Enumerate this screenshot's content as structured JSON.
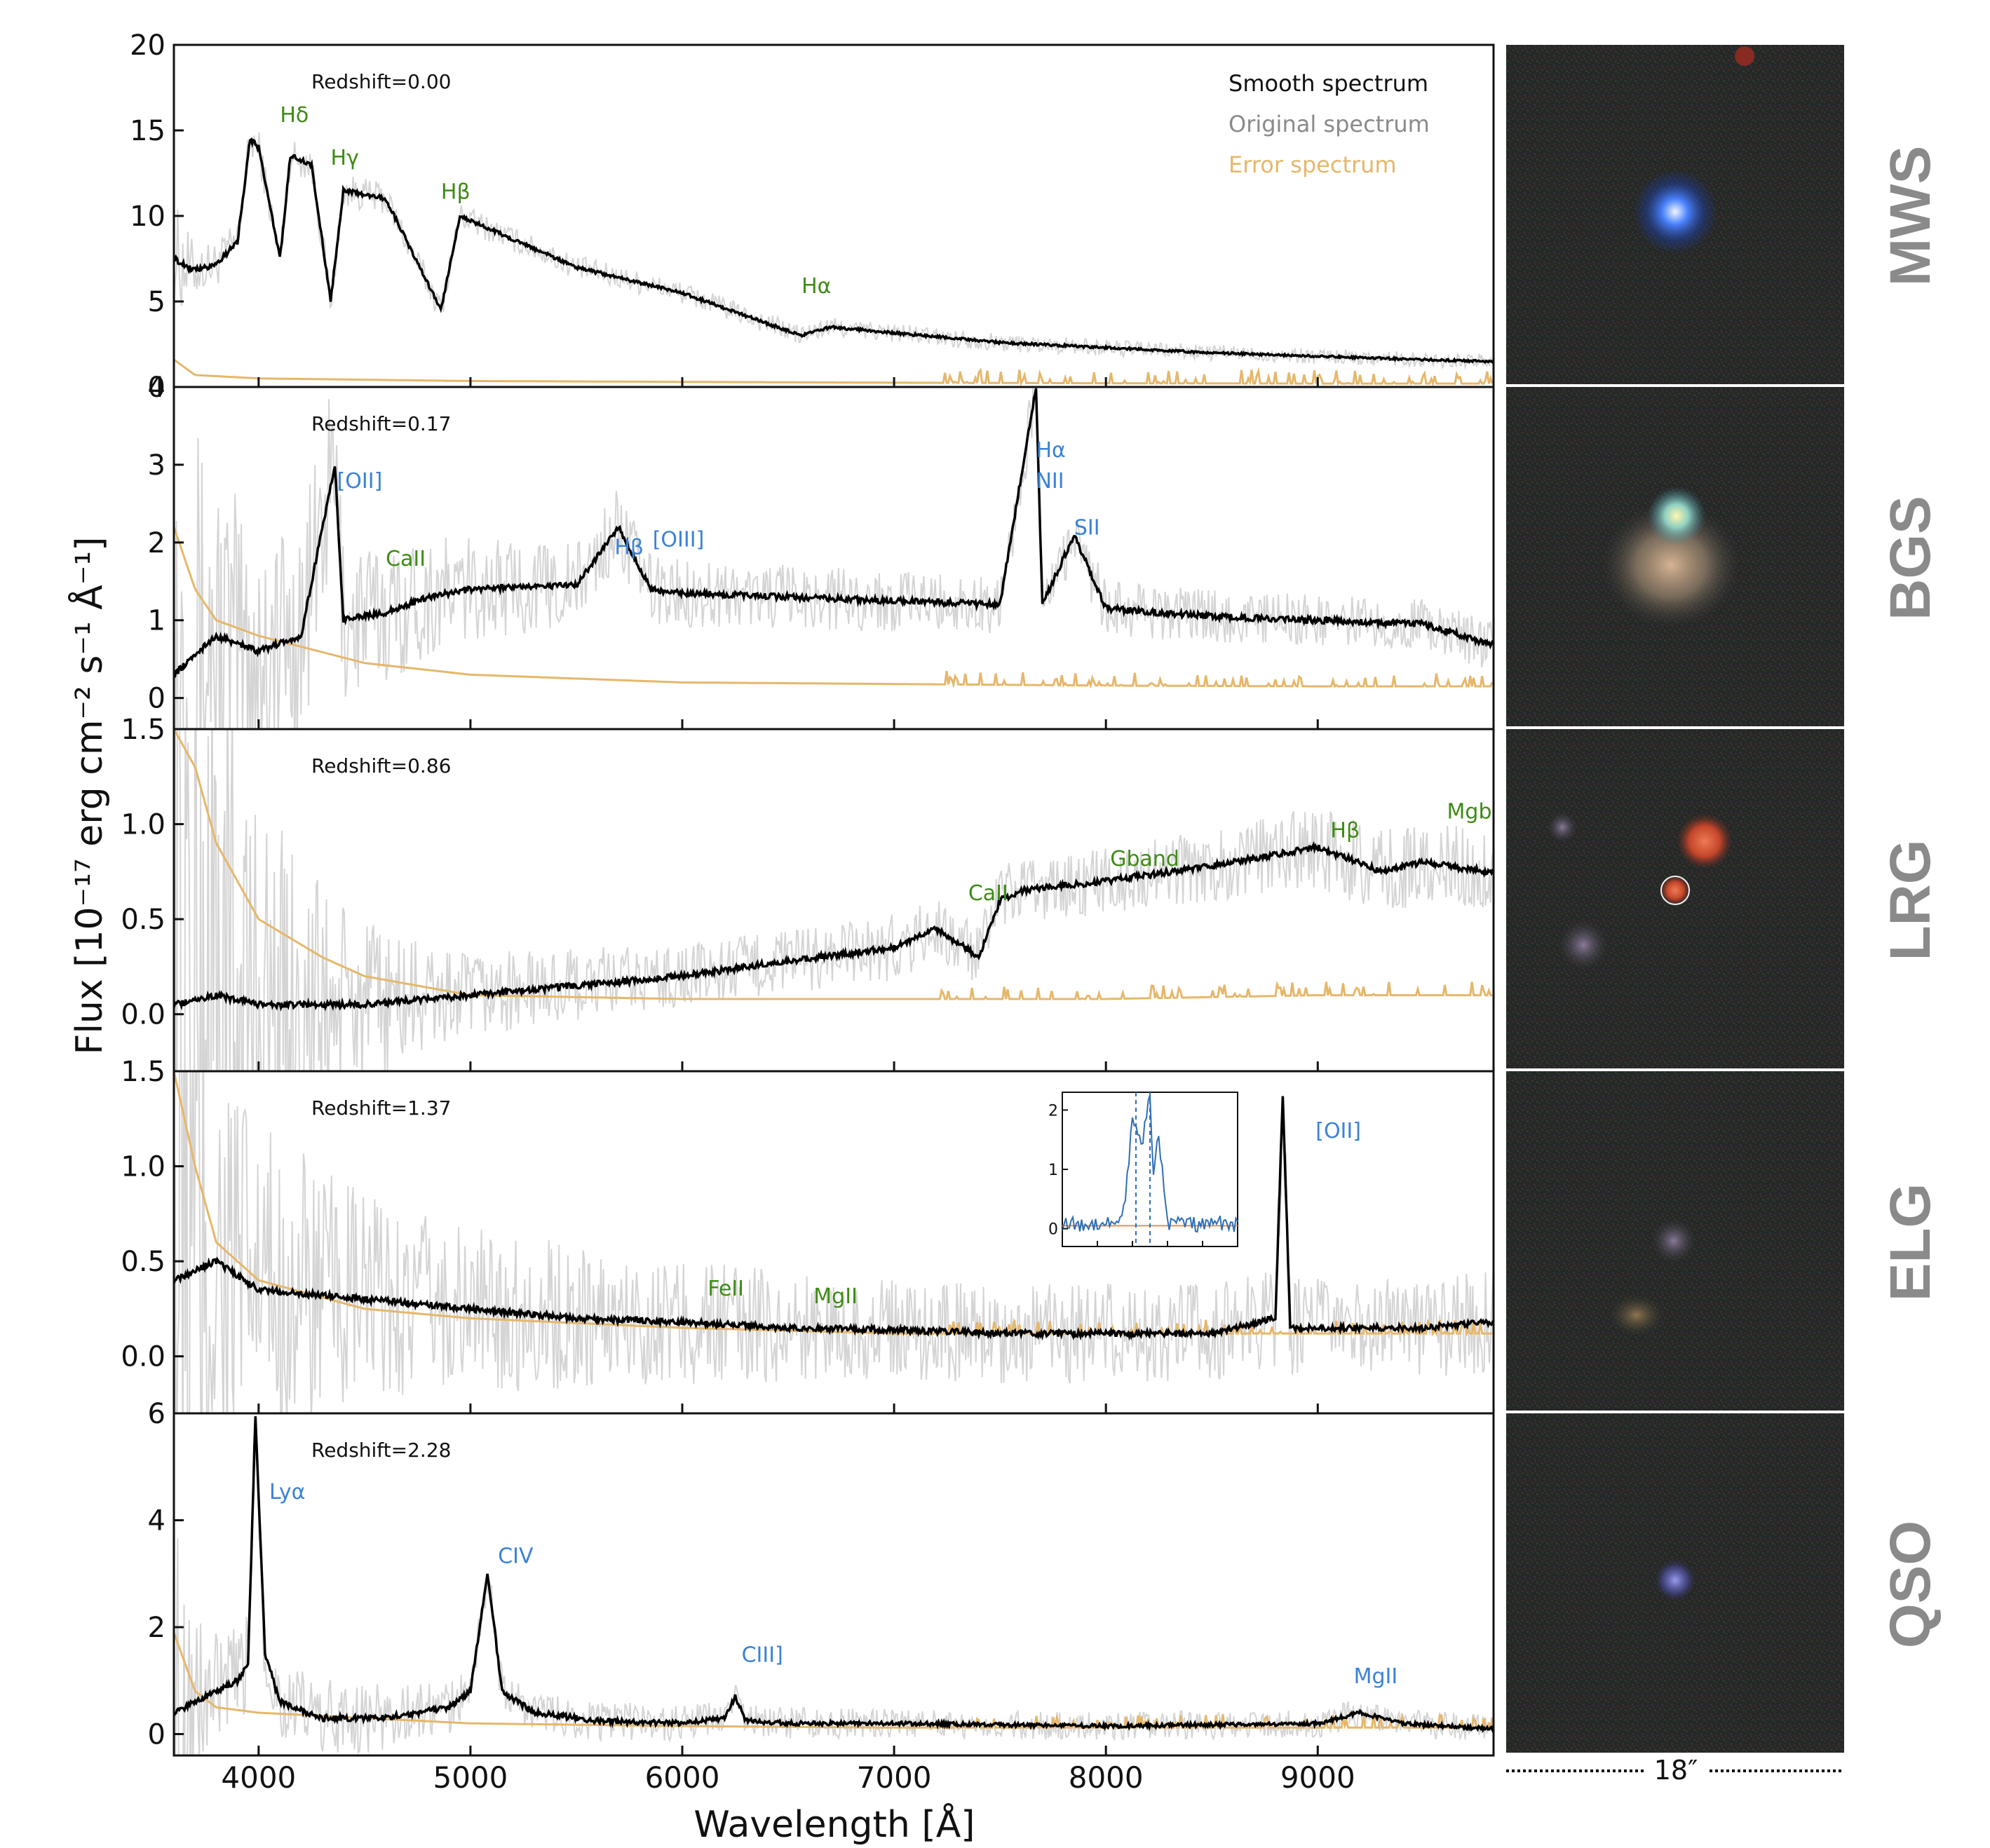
{
  "colors": {
    "smooth": "#000000",
    "original": "#cfcfcf",
    "error": "#e6b76a",
    "line_label_blue": "#3b82d6",
    "line_label_green": "#3f8b16",
    "inset_line": "#2f6fb5",
    "class_label": "#8a8a8a"
  },
  "legend": {
    "placement": "top-right",
    "smooth": "Smooth spectrum",
    "original": "Original spectrum",
    "error": "Error spectrum"
  },
  "axes": {
    "ylabel": "Flux [10⁻¹⁷ erg cm⁻² s⁻¹ Å⁻¹]",
    "xlabel": "Wavelength [Å]",
    "xlim": [
      3600,
      9830
    ],
    "xticks": [
      4000,
      5000,
      6000,
      7000,
      8000,
      9000
    ],
    "xtick_labels": [
      "4000",
      "5000",
      "6000",
      "7000",
      "8000",
      "9000"
    ]
  },
  "scale_bar": {
    "label": "18″"
  },
  "chart_data": [
    {
      "type": "line",
      "target_class": "MWS",
      "redshift_label": "Redshift=0.00",
      "ylim": [
        0,
        20
      ],
      "yticks": [
        0,
        5,
        10,
        15,
        20
      ],
      "ytick_labels": [
        "0",
        "5",
        "10",
        "15",
        "20"
      ],
      "series": [
        {
          "name": "Smooth spectrum",
          "x": [
            3600,
            3700,
            3800,
            3900,
            3960,
            4000,
            4101,
            4150,
            4250,
            4340,
            4400,
            4600,
            4861,
            4950,
            5500,
            6000,
            6563,
            6700,
            7500,
            8000,
            8500,
            9000,
            9500,
            9800
          ],
          "values": [
            7.5,
            6.8,
            7.2,
            8.5,
            14.5,
            14.0,
            7.5,
            13.5,
            13.0,
            5.0,
            11.5,
            11.0,
            4.5,
            10.0,
            7.0,
            5.5,
            3.0,
            3.5,
            2.6,
            2.3,
            2.0,
            1.8,
            1.6,
            1.5
          ]
        },
        {
          "name": "Error spectrum",
          "x": [
            3600,
            3700,
            4000,
            5000,
            6000,
            7000,
            8000,
            9000,
            9800
          ],
          "values": [
            1.6,
            0.7,
            0.5,
            0.35,
            0.3,
            0.25,
            0.22,
            0.2,
            0.2
          ]
        }
      ],
      "annotations": [
        {
          "text": "Hδ",
          "x": 4101,
          "y": 15.5,
          "color": "green"
        },
        {
          "text": "Hγ",
          "x": 4340,
          "y": 13.0,
          "color": "green"
        },
        {
          "text": "Hβ",
          "x": 4861,
          "y": 11.0,
          "color": "green"
        },
        {
          "text": "Hα",
          "x": 6563,
          "y": 5.5,
          "color": "green"
        }
      ],
      "showLegend": true
    },
    {
      "type": "line",
      "target_class": "BGS",
      "redshift_label": "Redshift=0.17",
      "ylim": [
        -0.4,
        4
      ],
      "yticks": [
        0,
        1,
        2,
        3,
        4
      ],
      "ytick_labels": [
        "0",
        "1",
        "2",
        "3",
        "4"
      ],
      "series": [
        {
          "name": "Smooth spectrum",
          "x": [
            3600,
            3800,
            4000,
            4200,
            4360,
            4400,
            4600,
            4800,
            5000,
            5500,
            5700,
            5850,
            6000,
            6500,
            7000,
            7500,
            7670,
            7700,
            7850,
            8000,
            8500,
            9000,
            9500,
            9800
          ],
          "values": [
            0.3,
            0.8,
            0.6,
            0.8,
            3.0,
            1.0,
            1.1,
            1.3,
            1.4,
            1.45,
            2.2,
            1.4,
            1.35,
            1.3,
            1.25,
            1.2,
            4.0,
            1.2,
            2.1,
            1.15,
            1.05,
            1.0,
            0.95,
            0.7
          ]
        },
        {
          "name": "Error spectrum",
          "x": [
            3600,
            3700,
            3800,
            4000,
            4500,
            5000,
            6000,
            7000,
            8000,
            9000,
            9800
          ],
          "values": [
            2.2,
            1.4,
            1.0,
            0.8,
            0.45,
            0.3,
            0.2,
            0.18,
            0.16,
            0.15,
            0.15
          ]
        }
      ],
      "annotations": [
        {
          "text": "[OII]",
          "x": 4370,
          "y": 2.7,
          "color": "blue"
        },
        {
          "text": "CaII",
          "x": 4600,
          "y": 1.7,
          "color": "green"
        },
        {
          "text": "Hβ",
          "x": 5680,
          "y": 1.85,
          "color": "blue"
        },
        {
          "text": "[OIII]",
          "x": 5860,
          "y": 1.95,
          "color": "blue"
        },
        {
          "text": "Hα",
          "x": 7670,
          "y": 3.1,
          "color": "blue"
        },
        {
          "text": "NII",
          "x": 7670,
          "y": 2.7,
          "color": "blue"
        },
        {
          "text": "SII",
          "x": 7850,
          "y": 2.1,
          "color": "blue"
        }
      ],
      "showLegend": false
    },
    {
      "type": "line",
      "target_class": "LRG",
      "redshift_label": "Redshift=0.86",
      "ylim": [
        -0.3,
        1.5
      ],
      "yticks": [
        0.0,
        0.5,
        1.0,
        1.5
      ],
      "ytick_labels": [
        "0.0",
        "0.5",
        "1.0",
        "1.5"
      ],
      "series": [
        {
          "name": "Smooth spectrum",
          "x": [
            3600,
            3800,
            4000,
            4500,
            5000,
            5500,
            6000,
            6500,
            7000,
            7200,
            7400,
            7500,
            7600,
            8000,
            8500,
            9000,
            9300,
            9500,
            9800
          ],
          "values": [
            0.05,
            0.1,
            0.05,
            0.05,
            0.1,
            0.15,
            0.2,
            0.28,
            0.35,
            0.45,
            0.3,
            0.6,
            0.65,
            0.7,
            0.78,
            0.88,
            0.75,
            0.8,
            0.75
          ]
        },
        {
          "name": "Error spectrum",
          "x": [
            3600,
            3700,
            3800,
            4000,
            4300,
            4500,
            5000,
            6000,
            7000,
            8000,
            9000,
            9800
          ],
          "values": [
            1.5,
            1.3,
            0.9,
            0.5,
            0.3,
            0.2,
            0.1,
            0.08,
            0.08,
            0.08,
            0.1,
            0.1
          ]
        }
      ],
      "annotations": [
        {
          "text": "CaII",
          "x": 7350,
          "y": 0.6,
          "color": "green"
        },
        {
          "text": "Gband",
          "x": 8020,
          "y": 0.78,
          "color": "green"
        },
        {
          "text": "Hβ",
          "x": 9060,
          "y": 0.93,
          "color": "green"
        },
        {
          "text": "Mgb",
          "x": 9610,
          "y": 1.03,
          "color": "green"
        }
      ],
      "showLegend": false
    },
    {
      "type": "line",
      "target_class": "ELG",
      "redshift_label": "Redshift=1.37",
      "ylim": [
        -0.3,
        1.5
      ],
      "yticks": [
        0.0,
        0.5,
        1.0,
        1.5
      ],
      "ytick_labels": [
        "0.0",
        "0.5",
        "1.0",
        "1.5"
      ],
      "series": [
        {
          "name": "Smooth spectrum",
          "x": [
            3600,
            3800,
            4000,
            4500,
            5000,
            5500,
            6000,
            6500,
            7000,
            7500,
            8000,
            8500,
            8800,
            8835,
            8870,
            9000,
            9500,
            9800
          ],
          "values": [
            0.4,
            0.5,
            0.35,
            0.3,
            0.25,
            0.2,
            0.18,
            0.15,
            0.14,
            0.12,
            0.12,
            0.12,
            0.2,
            1.38,
            0.15,
            0.15,
            0.15,
            0.18
          ]
        },
        {
          "name": "Error spectrum",
          "x": [
            3600,
            3700,
            3800,
            4000,
            4500,
            5000,
            6000,
            7000,
            8000,
            9000,
            9800
          ],
          "values": [
            1.5,
            1.0,
            0.6,
            0.4,
            0.25,
            0.2,
            0.15,
            0.12,
            0.12,
            0.12,
            0.12
          ]
        }
      ],
      "annotations": [
        {
          "text": "FeII",
          "x": 6120,
          "y": 0.32,
          "color": "green"
        },
        {
          "text": "MgII",
          "x": 6620,
          "y": 0.28,
          "color": "green"
        },
        {
          "text": "[OII]",
          "x": 8990,
          "y": 1.15,
          "color": "blue"
        }
      ],
      "inset": {
        "type": "line",
        "ylim": [
          -0.3,
          2.3
        ],
        "yticks": [
          0,
          1,
          2
        ],
        "ytick_labels": [
          "0",
          "1",
          "2"
        ],
        "x": [
          0,
          0.1,
          0.2,
          0.3,
          0.35,
          0.4,
          0.45,
          0.5,
          0.52,
          0.55,
          0.6,
          0.7,
          0.8,
          0.9,
          1.0
        ],
        "values": [
          0.1,
          0.05,
          0.1,
          0.1,
          0.3,
          1.8,
          1.4,
          2.2,
          0.9,
          1.6,
          0.1,
          0.1,
          0.05,
          0.1,
          0.05
        ]
      },
      "showLegend": false
    },
    {
      "type": "line",
      "target_class": "QSO",
      "redshift_label": "Redshift=2.28",
      "ylim": [
        -0.4,
        6
      ],
      "yticks": [
        0,
        2,
        4,
        6
      ],
      "ytick_labels": [
        "0",
        "2",
        "4",
        "6"
      ],
      "series": [
        {
          "name": "Smooth spectrum",
          "x": [
            3600,
            3800,
            3900,
            3950,
            3985,
            4030,
            4100,
            4300,
            4600,
            4900,
            5000,
            5080,
            5150,
            5300,
            5600,
            6000,
            6200,
            6250,
            6300,
            6500,
            7000,
            8000,
            9000,
            9200,
            9400,
            9800
          ],
          "values": [
            0.4,
            0.8,
            1.0,
            1.3,
            6.0,
            1.5,
            0.6,
            0.3,
            0.3,
            0.5,
            0.8,
            3.0,
            0.8,
            0.4,
            0.25,
            0.2,
            0.3,
            0.7,
            0.25,
            0.2,
            0.2,
            0.15,
            0.2,
            0.4,
            0.2,
            0.1
          ]
        },
        {
          "name": "Error spectrum",
          "x": [
            3600,
            3700,
            3800,
            4000,
            4500,
            5000,
            6000,
            7000,
            8000,
            9000,
            9800
          ],
          "values": [
            1.9,
            0.8,
            0.5,
            0.4,
            0.3,
            0.2,
            0.15,
            0.12,
            0.12,
            0.12,
            0.12
          ]
        }
      ],
      "annotations": [
        {
          "text": "Lyα",
          "x": 4050,
          "y": 4.4,
          "color": "blue"
        },
        {
          "text": "CIV",
          "x": 5130,
          "y": 3.2,
          "color": "blue"
        },
        {
          "text": "CIII]",
          "x": 6280,
          "y": 1.35,
          "color": "blue"
        },
        {
          "text": "MgII",
          "x": 9170,
          "y": 0.95,
          "color": "blue"
        }
      ],
      "showLegend": false
    }
  ]
}
